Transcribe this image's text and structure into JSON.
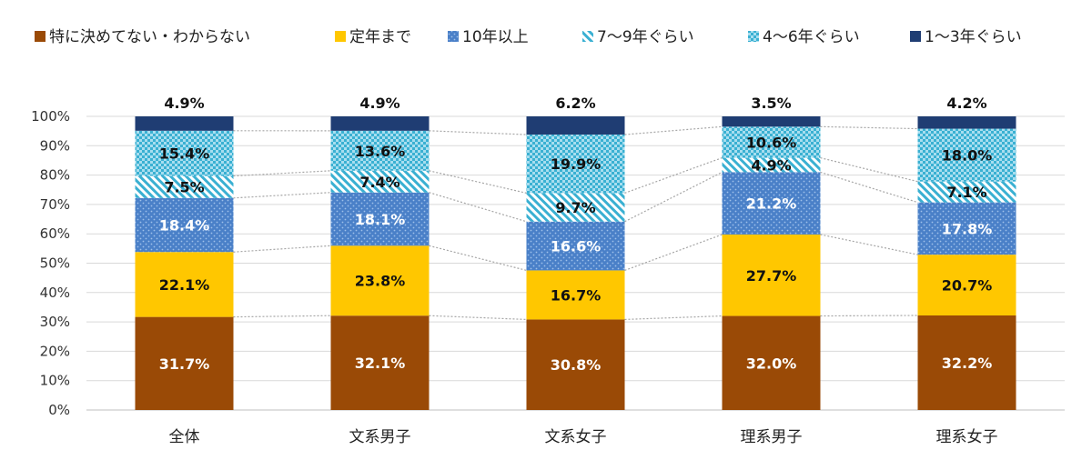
{
  "chart_data": {
    "type": "bar",
    "stacked": true,
    "percent": true,
    "categories": [
      "全体",
      "文系男子",
      "文系女子",
      "理系男子",
      "理系女子"
    ],
    "series": [
      {
        "name": "特に決めてない・わからない",
        "color": "#9a4a06",
        "pattern": "solid",
        "values": [
          31.7,
          32.1,
          30.8,
          32.0,
          32.2
        ]
      },
      {
        "name": "定年まで",
        "color": "#ffc700",
        "pattern": "solid",
        "values": [
          22.1,
          23.8,
          16.7,
          27.7,
          20.7
        ]
      },
      {
        "name": "10年以上",
        "color": "#4a80c8",
        "pattern": "dots",
        "values": [
          18.4,
          18.1,
          16.6,
          21.2,
          17.8
        ]
      },
      {
        "name": "7～9年ぐらい",
        "color": "#3ab0d2",
        "pattern": "diagonal",
        "values": [
          7.5,
          7.4,
          9.7,
          4.9,
          7.1
        ]
      },
      {
        "name": "4～6年ぐらい",
        "color": "#3ab0d2",
        "pattern": "checker",
        "values": [
          15.4,
          13.6,
          19.9,
          10.6,
          18.0
        ]
      },
      {
        "name": "1～3年ぐらい",
        "color": "#1f3d73",
        "pattern": "solid",
        "values": [
          4.9,
          4.9,
          6.2,
          3.5,
          4.2
        ]
      }
    ],
    "labels": [
      [
        "31.7%",
        "32.1%",
        "30.8%",
        "32.0%",
        "32.2%"
      ],
      [
        "22.1%",
        "23.8%",
        "16.7%",
        "27.7%",
        "20.7%"
      ],
      [
        "18.4%",
        "18.1%",
        "16.6%",
        "21.2%",
        "17.8%"
      ],
      [
        "7.5%",
        "7.4%",
        "9.7%",
        "4.9%",
        "7.1%"
      ],
      [
        "15.4%",
        "13.6%",
        "19.9%",
        "10.6%",
        "18.0%"
      ],
      [
        "4.9%",
        "4.9%",
        "6.2%",
        "3.5%",
        "4.2%"
      ]
    ],
    "label_colors": [
      "#ffffff",
      "#111111",
      "#ffffff",
      "#111111",
      "#111111",
      "#111111"
    ],
    "yticks": [
      "0%",
      "10%",
      "20%",
      "30%",
      "40%",
      "50%",
      "60%",
      "70%",
      "80%",
      "90%",
      "100%"
    ],
    "ylim": [
      0,
      100
    ],
    "grid": true,
    "series_lines": "dotted",
    "legend_position": "top"
  }
}
